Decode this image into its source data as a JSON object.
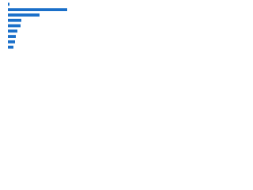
{
  "chart_data": {
    "type": "hbar",
    "categories": [
      null,
      null,
      null,
      null,
      null,
      null,
      null,
      null,
      null
    ],
    "values": [
      2,
      75,
      40,
      17,
      16,
      12,
      10,
      9,
      7
    ],
    "color": "#1a6fc9",
    "xlim": [
      0,
      85
    ]
  }
}
